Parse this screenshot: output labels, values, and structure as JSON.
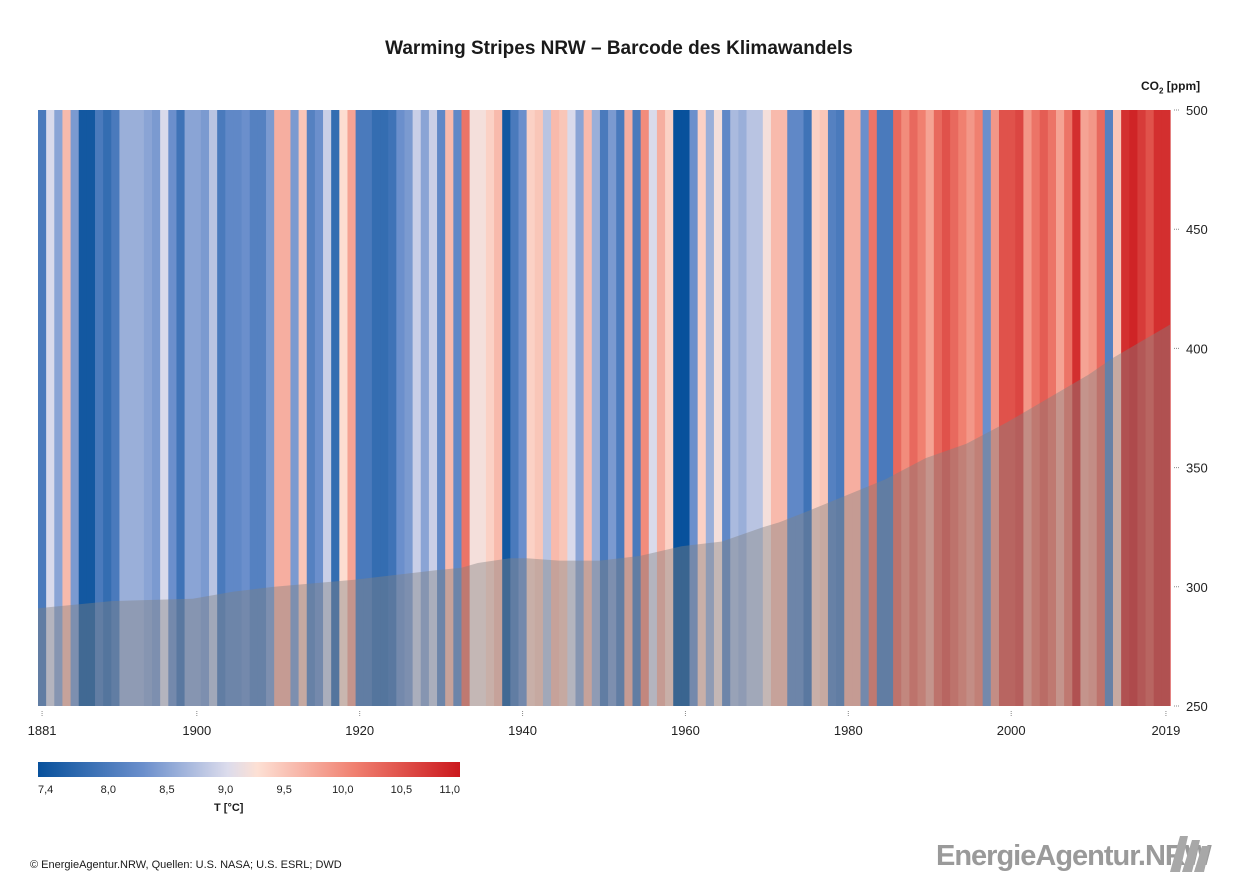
{
  "title": "Warming Stripes NRW – Barcode des Klimawandels",
  "co2_axis": {
    "label_main": "CO",
    "label_sub": "2",
    "label_unit": " [ppm]"
  },
  "colorbar": {
    "label": "T [°C]",
    "ticks": [
      "7,4",
      "8,0",
      "8,5",
      "9,0",
      "9,5",
      "10,0",
      "10,5",
      "11,0"
    ]
  },
  "footer": "© EnergieAgentur.NRW, Quellen: U.S. NASA; U.S. ESRL; DWD",
  "logo_text": "EnergieAgentur.NRW",
  "colors": {
    "cold": "#08519c",
    "neutral": "#f7f7f7",
    "warm": "#cb181d",
    "co2_area": "#808080"
  },
  "chart_data": {
    "type": "heatmap",
    "title": "Warming Stripes NRW – Barcode des Klimawandels",
    "start_year": 1881,
    "end_year": 2019,
    "x_tick_labels": [
      "1881",
      "1900",
      "1920",
      "1940",
      "1960",
      "1980",
      "2000",
      "2019"
    ],
    "x_ticks": [
      1881,
      1900,
      1920,
      1940,
      1960,
      1980,
      2000,
      2019
    ],
    "temperature_unit": "°C",
    "temperature_range": [
      7.4,
      11.0
    ],
    "temperature": [
      8.0,
      9.0,
      8.5,
      9.6,
      8.4,
      7.5,
      7.5,
      8.0,
      7.8,
      8.0,
      8.6,
      8.6,
      8.6,
      8.5,
      8.4,
      9.0,
      8.3,
      7.9,
      8.5,
      8.5,
      8.4,
      8.8,
      8.0,
      8.2,
      8.2,
      8.3,
      8.1,
      8.1,
      8.4,
      9.7,
      9.7,
      8.4,
      9.5,
      8.1,
      8.3,
      8.9,
      7.8,
      9.3,
      9.8,
      8.0,
      8.0,
      7.8,
      7.8,
      7.9,
      8.3,
      8.4,
      8.9,
      8.5,
      8.9,
      8.2,
      9.6,
      8.2,
      10.2,
      9.2,
      9.2,
      9.4,
      9.6,
      7.5,
      8.0,
      8.3,
      9.4,
      9.5,
      8.8,
      9.6,
      9.5,
      9.0,
      8.5,
      9.6,
      8.6,
      8.0,
      8.4,
      8.0,
      9.7,
      8.0,
      10.0,
      9.0,
      9.7,
      9.4,
      7.4,
      7.4,
      8.3,
      9.4,
      8.6,
      9.2,
      8.2,
      8.7,
      8.6,
      8.8,
      8.8,
      9.2,
      9.6,
      9.6,
      8.2,
      8.2,
      7.9,
      9.4,
      9.5,
      8.1,
      8.0,
      9.7,
      9.7,
      8.3,
      10.2,
      8.0,
      8.0,
      10.3,
      10.0,
      10.3,
      10.1,
      9.8,
      10.3,
      10.5,
      10.3,
      10.1,
      9.9,
      10.1,
      8.3,
      9.9,
      10.5,
      10.5,
      10.6,
      9.9,
      10.2,
      10.4,
      10.2,
      9.8,
      10.2,
      10.8,
      9.8,
      9.9,
      10.3,
      8.1,
      9.5,
      10.8,
      10.9,
      10.7,
      10.5,
      10.8,
      10.8
    ],
    "co2_unit": "ppm",
    "co2_ylim": [
      250,
      500
    ],
    "co2_ticks": [
      250,
      300,
      350,
      400,
      450,
      500
    ],
    "co2_key_points": [
      [
        1881,
        291
      ],
      [
        1890,
        294
      ],
      [
        1900,
        295
      ],
      [
        1905,
        298
      ],
      [
        1910,
        300
      ],
      [
        1920,
        303
      ],
      [
        1930,
        307
      ],
      [
        1933,
        308
      ],
      [
        1935,
        310
      ],
      [
        1939,
        312
      ],
      [
        1941,
        312
      ],
      [
        1945,
        311
      ],
      [
        1950,
        311
      ],
      [
        1955,
        313
      ],
      [
        1960,
        317
      ],
      [
        1965,
        319
      ],
      [
        1970,
        325
      ],
      [
        1972,
        327
      ],
      [
        1975,
        331
      ],
      [
        1980,
        338
      ],
      [
        1985,
        345
      ],
      [
        1990,
        354
      ],
      [
        1995,
        360
      ],
      [
        2000,
        369
      ],
      [
        2005,
        379
      ],
      [
        2010,
        389
      ],
      [
        2013,
        396
      ],
      [
        2015,
        400
      ],
      [
        2019,
        410
      ]
    ]
  }
}
